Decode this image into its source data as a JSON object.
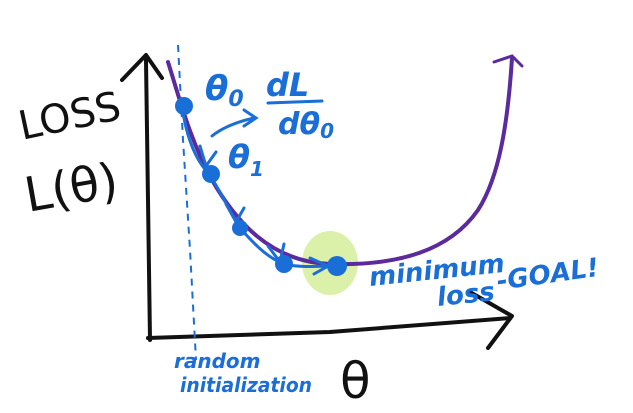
{
  "labels": {
    "y_axis_line1": "LOSS",
    "y_axis_line2": "L(θ)",
    "x_axis": "θ",
    "theta0": "θ",
    "theta0_sub": "0",
    "theta1": "θ",
    "theta1_sub": "1",
    "grad_num": "dL",
    "grad_den": "dθ",
    "grad_den_sub": "0",
    "min_line1": "minimum",
    "min_line2": "loss",
    "goal": "-GOAL!",
    "init_line1": "random",
    "init_line2": "initialization"
  },
  "colors": {
    "ink_black": "#111111",
    "ink_blue": "#1a6ed8",
    "curve_purple": "#5b2a9c",
    "highlight_green": "#d7f0a0"
  }
}
